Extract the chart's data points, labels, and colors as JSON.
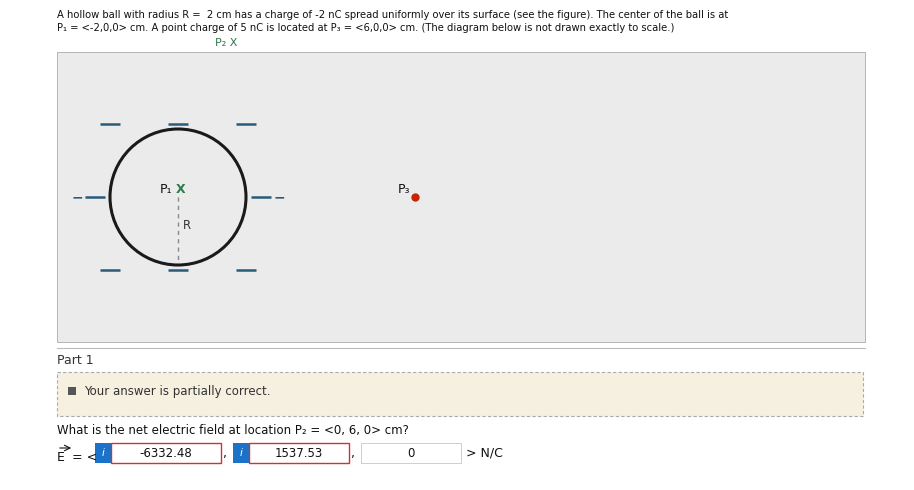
{
  "title_line1": "A hollow ball with radius R =  2 cm has a charge of -2 nC spread uniformly over its surface (see the figure). The center of the ball is at",
  "title_line2": "P₁ = <-2,0,0> cm. A point charge of 5 nC is located at P₃ = <6,0,0> cm. (The diagram below is not drawn exactly to scale.)",
  "p2_label": "P₂ X",
  "p1_label": "P₁",
  "x_label": "X",
  "r_label": "R",
  "p3_label": "P₃",
  "part_label": "Part 1",
  "partial_msg": "Your answer is partially correct.",
  "question": "What is the net electric field at location P₂ = <0, 6, 0> cm?",
  "e_label": "E = <",
  "val1": "-6332.48",
  "val2": "1537.53",
  "val3": "0",
  "unit": "> N/C",
  "bg_color": "#ffffff",
  "diagram_bg": "#ebebeb",
  "input_blue": "#1a73c8",
  "circle_color": "#1a1a1a",
  "tick_color": "#2a5a7a",
  "minus_color": "#2a5a7a",
  "p1_x_color": "#2d7a4a",
  "p3_dot_color": "#cc2200",
  "p2_x_color": "#2d7a4a"
}
